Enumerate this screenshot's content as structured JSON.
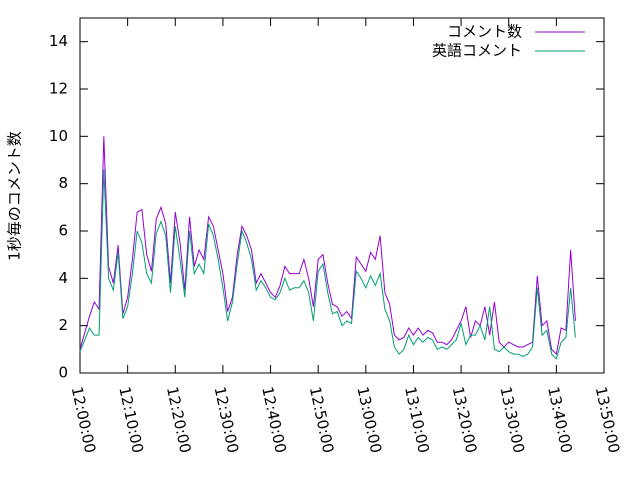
{
  "chart_data": {
    "type": "line",
    "y_label": "1秒毎のコメント数",
    "x": [
      "12:00:00",
      "12:01:00",
      "12:02:00",
      "12:03:00",
      "12:04:00",
      "12:05:00",
      "12:06:00",
      "12:07:00",
      "12:08:00",
      "12:09:00",
      "12:10:00",
      "12:11:00",
      "12:12:00",
      "12:13:00",
      "12:14:00",
      "12:15:00",
      "12:16:00",
      "12:17:00",
      "12:18:00",
      "12:19:00",
      "12:20:00",
      "12:21:00",
      "12:22:00",
      "12:23:00",
      "12:24:00",
      "12:25:00",
      "12:26:00",
      "12:27:00",
      "12:28:00",
      "12:29:00",
      "12:30:00",
      "12:31:00",
      "12:32:00",
      "12:33:00",
      "12:34:00",
      "12:35:00",
      "12:36:00",
      "12:37:00",
      "12:38:00",
      "12:39:00",
      "12:40:00",
      "12:41:00",
      "12:42:00",
      "12:43:00",
      "12:44:00",
      "12:45:00",
      "12:46:00",
      "12:47:00",
      "12:48:00",
      "12:49:00",
      "12:50:00",
      "12:51:00",
      "12:52:00",
      "12:53:00",
      "12:54:00",
      "12:55:00",
      "12:56:00",
      "12:57:00",
      "12:58:00",
      "12:59:00",
      "13:00:00",
      "13:01:00",
      "13:02:00",
      "13:03:00",
      "13:04:00",
      "13:05:00",
      "13:06:00",
      "13:07:00",
      "13:08:00",
      "13:09:00",
      "13:10:00",
      "13:11:00",
      "13:12:00",
      "13:13:00",
      "13:14:00",
      "13:15:00",
      "13:16:00",
      "13:17:00",
      "13:18:00",
      "13:19:00",
      "13:20:00",
      "13:21:00",
      "13:22:00",
      "13:23:00",
      "13:24:00",
      "13:25:00",
      "13:26:00",
      "13:27:00",
      "13:28:00",
      "13:29:00",
      "13:30:00",
      "13:31:00",
      "13:32:00",
      "13:33:00",
      "13:34:00",
      "13:35:00",
      "13:36:00",
      "13:37:00",
      "13:38:00",
      "13:39:00",
      "13:40:00",
      "13:41:00",
      "13:42:00",
      "13:43:00",
      "13:44:00"
    ],
    "series": [
      {
        "name": "コメント数",
        "color": "#9400d3",
        "values": [
          1.0,
          1.7,
          2.4,
          3.0,
          2.7,
          10.0,
          4.5,
          3.8,
          5.4,
          2.5,
          3.2,
          4.8,
          6.8,
          6.9,
          5.0,
          4.3,
          6.5,
          7.0,
          6.3,
          3.8,
          6.8,
          5.5,
          3.5,
          6.6,
          4.5,
          5.2,
          4.8,
          6.6,
          6.2,
          5.2,
          4.2,
          2.6,
          3.2,
          5.0,
          6.2,
          5.8,
          5.2,
          3.8,
          4.2,
          3.8,
          3.4,
          3.2,
          3.7,
          4.5,
          4.2,
          4.2,
          4.2,
          4.8,
          4.0,
          2.8,
          4.8,
          5.0,
          3.8,
          2.9,
          2.8,
          2.4,
          2.6,
          2.3,
          4.9,
          4.6,
          4.3,
          5.1,
          4.8,
          5.8,
          3.4,
          2.9,
          1.6,
          1.4,
          1.5,
          1.9,
          1.6,
          1.9,
          1.6,
          1.8,
          1.7,
          1.3,
          1.3,
          1.2,
          1.4,
          1.8,
          2.2,
          2.8,
          1.5,
          2.2,
          2.0,
          2.8,
          1.6,
          3.0,
          1.3,
          1.1,
          1.3,
          1.2,
          1.1,
          1.1,
          1.2,
          1.3,
          4.1,
          2.0,
          2.2,
          1.0,
          0.8,
          1.9,
          1.8,
          5.2,
          2.2
        ]
      },
      {
        "name": "英語コメント",
        "color": "#009e73",
        "values": [
          0.9,
          1.4,
          1.9,
          1.6,
          1.6,
          8.6,
          4.0,
          3.5,
          5.1,
          2.3,
          2.8,
          4.2,
          6.0,
          5.5,
          4.2,
          3.8,
          5.9,
          6.4,
          5.8,
          3.4,
          6.2,
          4.8,
          3.2,
          6.0,
          4.2,
          4.6,
          4.2,
          6.3,
          5.8,
          4.8,
          3.6,
          2.2,
          3.0,
          4.6,
          6.0,
          5.5,
          4.8,
          3.5,
          3.9,
          3.6,
          3.2,
          3.1,
          3.4,
          4.0,
          3.5,
          3.6,
          3.6,
          3.9,
          3.4,
          2.2,
          4.3,
          4.6,
          3.4,
          2.5,
          2.6,
          2.0,
          2.2,
          2.1,
          4.3,
          4.0,
          3.6,
          4.1,
          3.7,
          4.2,
          2.7,
          2.2,
          1.1,
          0.8,
          1.0,
          1.6,
          1.2,
          1.5,
          1.3,
          1.5,
          1.4,
          1.0,
          1.1,
          1.0,
          1.2,
          1.4,
          2.1,
          1.2,
          1.6,
          1.6,
          2.0,
          1.4,
          2.8,
          1.0,
          0.9,
          1.1,
          0.9,
          0.8,
          0.8,
          0.7,
          0.8,
          1.1,
          3.6,
          1.6,
          1.8,
          0.8,
          0.6,
          1.3,
          1.5,
          3.6,
          1.5
        ]
      }
    ],
    "xlim": [
      "12:00:00",
      "13:50:00"
    ],
    "xticks": [
      "12:00:00",
      "12:10:00",
      "12:20:00",
      "12:30:00",
      "12:40:00",
      "12:50:00",
      "13:00:00",
      "13:10:00",
      "13:20:00",
      "13:30:00",
      "13:40:00",
      "13:50:00"
    ],
    "ylim": [
      0,
      15
    ],
    "yticks": [
      0,
      2,
      4,
      6,
      8,
      10,
      12,
      14
    ],
    "legend": "top-right"
  }
}
